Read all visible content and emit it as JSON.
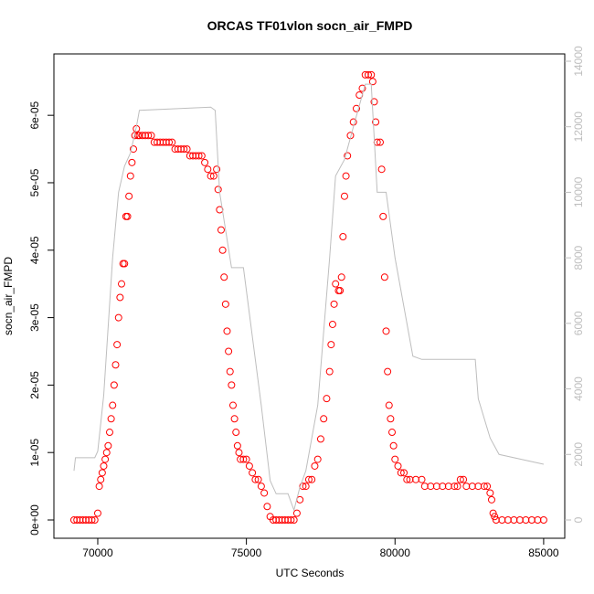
{
  "chart_data": {
    "type": "scatter",
    "title": "ORCAS TF01vlon socn_air_FMPD",
    "x_label": "UTC Seconds",
    "y_label": "socn_air_FMPD",
    "xlim": [
      68525,
      85710
    ],
    "ylim": [
      -2.71e-06,
      6.91e-05
    ],
    "y2lim": [
      -558,
      14223
    ],
    "xticks": [
      70000,
      75000,
      80000,
      85000
    ],
    "yticks": [
      {
        "value": 0,
        "label": "0e+00"
      },
      {
        "value": 1e-05,
        "label": "1e-05"
      },
      {
        "value": 2e-05,
        "label": "2e-05"
      },
      {
        "value": 3e-05,
        "label": "3e-05"
      },
      {
        "value": 4e-05,
        "label": "4e-05"
      },
      {
        "value": 5e-05,
        "label": "5e-05"
      },
      {
        "value": 6e-05,
        "label": "6e-05"
      }
    ],
    "y2ticks": [
      0,
      2000,
      4000,
      6000,
      8000,
      10000,
      12000,
      14000
    ],
    "series": [
      {
        "type": "scatter",
        "color": "#ff0000",
        "x": [
          69200,
          69300,
          69400,
          69500,
          69600,
          69700,
          69800,
          69900,
          70000,
          70050,
          70100,
          70150,
          70200,
          70250,
          70300,
          70350,
          70400,
          70450,
          70500,
          70550,
          70600,
          70650,
          70700,
          70750,
          70800,
          70850,
          70900,
          70950,
          71000,
          71050,
          71100,
          71150,
          71200,
          71250,
          71300,
          71350,
          71400,
          71500,
          71600,
          71700,
          71800,
          71900,
          72000,
          72100,
          72200,
          72300,
          72400,
          72500,
          72600,
          72700,
          72800,
          72900,
          73000,
          73100,
          73200,
          73300,
          73400,
          73500,
          73600,
          73700,
          73800,
          73900,
          74000,
          74050,
          74100,
          74150,
          74200,
          74250,
          74300,
          74350,
          74400,
          74450,
          74500,
          74550,
          74600,
          74650,
          74700,
          74750,
          74800,
          74900,
          75000,
          75100,
          75200,
          75300,
          75400,
          75500,
          75600,
          75700,
          75800,
          75900,
          76000,
          76100,
          76200,
          76300,
          76400,
          76500,
          76600,
          76700,
          76800,
          76900,
          77000,
          77100,
          77200,
          77300,
          77400,
          77500,
          77600,
          77700,
          77800,
          77850,
          77900,
          77950,
          78000,
          78100,
          78150,
          78200,
          78250,
          78300,
          78350,
          78400,
          78500,
          78600,
          78700,
          78800,
          78900,
          79000,
          79100,
          79200,
          79250,
          79300,
          79350,
          79400,
          79500,
          79550,
          79600,
          79650,
          79700,
          79750,
          79800,
          79850,
          79900,
          79950,
          80000,
          80100,
          80200,
          80300,
          80400,
          80500,
          80700,
          80900,
          81000,
          81200,
          81400,
          81600,
          81800,
          82000,
          82100,
          82200,
          82300,
          82400,
          82600,
          82800,
          83000,
          83100,
          83200,
          83250,
          83300,
          83350,
          83400,
          83600,
          83800,
          84000,
          84200,
          84400,
          84600,
          84800,
          85000
        ],
        "values": [
          0,
          0,
          0,
          0,
          0,
          0,
          0,
          0,
          1e-06,
          5e-06,
          6e-06,
          7e-06,
          8e-06,
          9e-06,
          1e-05,
          1.1e-05,
          1.3e-05,
          1.5e-05,
          1.7e-05,
          2e-05,
          2.3e-05,
          2.6e-05,
          3e-05,
          3.3e-05,
          3.5e-05,
          3.8e-05,
          3.8e-05,
          4.5e-05,
          4.5e-05,
          4.8e-05,
          5.1e-05,
          5.3e-05,
          5.5e-05,
          5.7e-05,
          5.8e-05,
          5.7e-05,
          5.7e-05,
          5.7e-05,
          5.7e-05,
          5.7e-05,
          5.7e-05,
          5.6e-05,
          5.6e-05,
          5.6e-05,
          5.6e-05,
          5.6e-05,
          5.6e-05,
          5.6e-05,
          5.5e-05,
          5.5e-05,
          5.5e-05,
          5.5e-05,
          5.5e-05,
          5.4e-05,
          5.4e-05,
          5.4e-05,
          5.4e-05,
          5.4e-05,
          5.3e-05,
          5.2e-05,
          5.1e-05,
          5.1e-05,
          5.2e-05,
          4.9e-05,
          4.6e-05,
          4.3e-05,
          4e-05,
          3.6e-05,
          3.2e-05,
          2.8e-05,
          2.5e-05,
          2.2e-05,
          2e-05,
          1.7e-05,
          1.5e-05,
          1.3e-05,
          1.1e-05,
          1e-05,
          9e-06,
          9e-06,
          9e-06,
          8e-06,
          7e-06,
          6e-06,
          6e-06,
          5e-06,
          4e-06,
          2e-06,
          5e-07,
          0,
          0,
          0,
          0,
          0,
          0,
          0,
          0,
          1e-06,
          3e-06,
          5e-06,
          5e-06,
          6e-06,
          6e-06,
          8e-06,
          9e-06,
          1.2e-05,
          1.5e-05,
          1.8e-05,
          2.2e-05,
          2.6e-05,
          2.9e-05,
          3.2e-05,
          3.5e-05,
          3.4e-05,
          3.4e-05,
          3.6e-05,
          4.2e-05,
          4.8e-05,
          5.1e-05,
          5.4e-05,
          5.7e-05,
          5.9e-05,
          6.1e-05,
          6.3e-05,
          6.4e-05,
          6.6e-05,
          6.6e-05,
          6.6e-05,
          6.5e-05,
          6.2e-05,
          5.9e-05,
          5.6e-05,
          5.6e-05,
          5.2e-05,
          4.5e-05,
          3.6e-05,
          2.8e-05,
          2.2e-05,
          1.7e-05,
          1.5e-05,
          1.3e-05,
          1.1e-05,
          9e-06,
          8e-06,
          7e-06,
          7e-06,
          6e-06,
          6e-06,
          6e-06,
          6e-06,
          5e-06,
          5e-06,
          5e-06,
          5e-06,
          5e-06,
          5e-06,
          5e-06,
          6e-06,
          6e-06,
          5e-06,
          5e-06,
          5e-06,
          5e-06,
          5e-06,
          4e-06,
          3e-06,
          1e-06,
          5e-07,
          0,
          0,
          0,
          0,
          0,
          0,
          0,
          0,
          0
        ]
      },
      {
        "type": "line",
        "axis": "y2",
        "color": "#bebebe",
        "x": [
          69200,
          69250,
          69900,
          70000,
          70200,
          70500,
          70700,
          70900,
          71100,
          71300,
          71400,
          73800,
          73950,
          74100,
          74500,
          74900,
          75500,
          75800,
          76000,
          76400,
          76600,
          76800,
          77000,
          77400,
          77800,
          78000,
          78300,
          78600,
          79000,
          79200,
          79400,
          79700,
          80000,
          80600,
          80900,
          82700,
          82800,
          83200,
          83500,
          85000
        ],
        "values": [
          1500,
          1900,
          1900,
          2100,
          3800,
          8000,
          10000,
          10800,
          11200,
          12000,
          12500,
          12600,
          12500,
          10000,
          7700,
          7700,
          3500,
          1200,
          800,
          800,
          300,
          1000,
          1500,
          3500,
          8000,
          10500,
          11000,
          12000,
          13300,
          13300,
          10000,
          10000,
          8000,
          5000,
          4900,
          4900,
          3700,
          2500,
          2000,
          1700
        ]
      }
    ]
  }
}
